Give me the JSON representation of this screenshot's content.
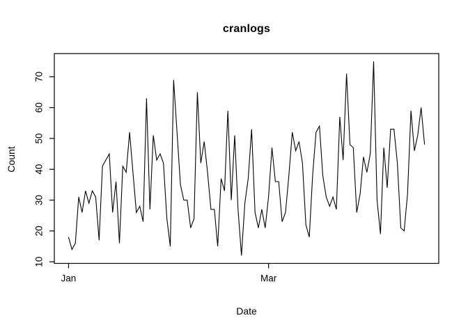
{
  "title": "cranlogs",
  "chart_data": {
    "type": "line",
    "title": "cranlogs",
    "xlabel": "Date",
    "ylabel": "Count",
    "x_description": "daily values, first point at the Jan tick, one point per day",
    "values": [
      18,
      14,
      16,
      31,
      26,
      33,
      29,
      33,
      31,
      17,
      41,
      43,
      45,
      26,
      36,
      16,
      41,
      39,
      52,
      39,
      26,
      28,
      23,
      63,
      27,
      51,
      43,
      45,
      42,
      24,
      15,
      69,
      52,
      35,
      30,
      30,
      21,
      24,
      65,
      42,
      49,
      39,
      27,
      27,
      15,
      37,
      33,
      59,
      30,
      51,
      27,
      12,
      29,
      37,
      53,
      26,
      21,
      27,
      21,
      31,
      47,
      36,
      36,
      23,
      26,
      38,
      52,
      46,
      49,
      42,
      22,
      18,
      38,
      52,
      54,
      38,
      31,
      28,
      31,
      27,
      57,
      43,
      71,
      48,
      47,
      26,
      32,
      44,
      39,
      45,
      75,
      30,
      19,
      47,
      34,
      53,
      53,
      42,
      21,
      20,
      32,
      59,
      46,
      51,
      60,
      48
    ],
    "x_ticks": [
      {
        "label": "Jan",
        "day": 0
      },
      {
        "label": "Mar",
        "day": 59
      }
    ],
    "y_ticks": [
      10,
      20,
      30,
      40,
      50,
      60,
      70
    ],
    "xlim": [
      -4.2,
      109.2
    ],
    "ylim": [
      9.48,
      77.52
    ],
    "grid": false,
    "legend": null,
    "line_color": "#000000",
    "axis_color": "#000000",
    "background": "#ffffff"
  }
}
